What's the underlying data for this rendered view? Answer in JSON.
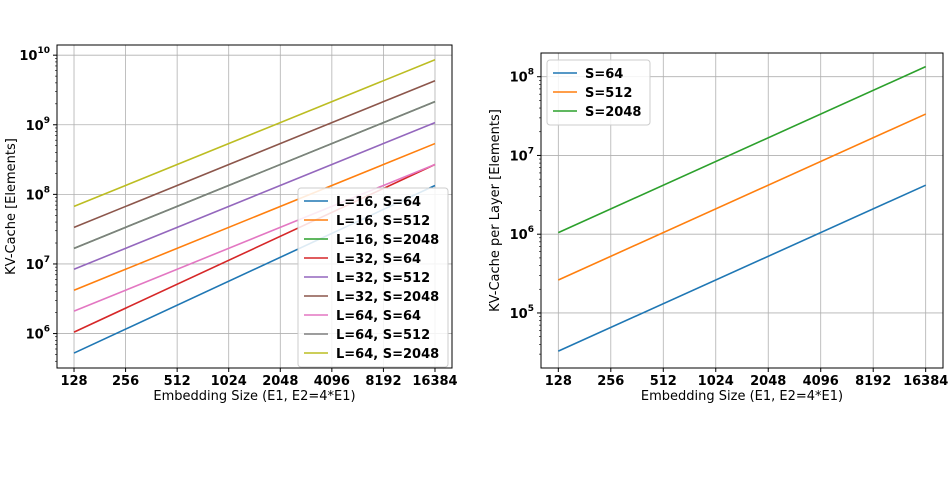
{
  "chart_data": [
    {
      "type": "line",
      "log_x": true,
      "log_y": true,
      "x": [
        128,
        256,
        512,
        1024,
        2048,
        4096,
        8192,
        16384
      ],
      "xticks": [
        "128",
        "256",
        "512",
        "1024",
        "2048",
        "4096",
        "8192",
        "16384"
      ],
      "yticks": [
        {
          "base": "10",
          "exp": "6"
        },
        {
          "base": "10",
          "exp": "7"
        },
        {
          "base": "10",
          "exp": "8"
        },
        {
          "base": "10",
          "exp": "9"
        },
        {
          "base": "10",
          "exp": "10"
        }
      ],
      "xlabel": "Embedding Size (E1, E2=4*E1)",
      "ylabel": "KV-Cache [Elements]",
      "ylim": [
        320000,
        14000000000
      ],
      "grid": true,
      "legend_position": "lower-right",
      "series": [
        {
          "name": "L=16, S=64",
          "color": "#1f77b4",
          "start": 524288,
          "end": 134217728
        },
        {
          "name": "L=16, S=512",
          "color": "#ff7f0e",
          "start": 4194304,
          "end": 536870912
        },
        {
          "name": "L=16, S=2048",
          "color": "#2ca02c",
          "start": 16777216,
          "end": 2147483648
        },
        {
          "name": "L=32, S=64",
          "color": "#d62728",
          "start": 1048576,
          "end": 268435456
        },
        {
          "name": "L=32, S=512",
          "color": "#9467bd",
          "start": 8388608,
          "end": 1073741824
        },
        {
          "name": "L=32, S=2048",
          "color": "#8c564b",
          "start": 33554432,
          "end": 4294967296
        },
        {
          "name": "L=64, S=64",
          "color": "#e377c2",
          "start": 2097152,
          "end": 268435456
        },
        {
          "name": "L=64, S=512",
          "color": "#7f7f7f",
          "start": 16777216,
          "end": 2147483648
        },
        {
          "name": "L=64, S=2048",
          "color": "#bcbd22",
          "start": 67108864,
          "end": 8589934592
        }
      ]
    },
    {
      "type": "line",
      "log_x": true,
      "log_y": true,
      "x": [
        128,
        256,
        512,
        1024,
        2048,
        4096,
        8192,
        16384
      ],
      "xticks": [
        "128",
        "256",
        "512",
        "1024",
        "2048",
        "4096",
        "8192",
        "16384"
      ],
      "yticks": [
        {
          "base": "10",
          "exp": "5"
        },
        {
          "base": "10",
          "exp": "6"
        },
        {
          "base": "10",
          "exp": "7"
        },
        {
          "base": "10",
          "exp": "8"
        }
      ],
      "xlabel": "Embedding Size (E1, E2=4*E1)",
      "ylabel": "KV-Cache per Layer [Elements]",
      "ylim": [
        20000,
        200000000
      ],
      "grid": true,
      "legend_position": "upper-left",
      "series": [
        {
          "name": "S=64",
          "color": "#1f77b4",
          "start": 32768,
          "end": 4194304
        },
        {
          "name": "S=512",
          "color": "#ff7f0e",
          "start": 262144,
          "end": 33554432
        },
        {
          "name": "S=2048",
          "color": "#2ca02c",
          "start": 1048576,
          "end": 134217728
        }
      ]
    }
  ]
}
